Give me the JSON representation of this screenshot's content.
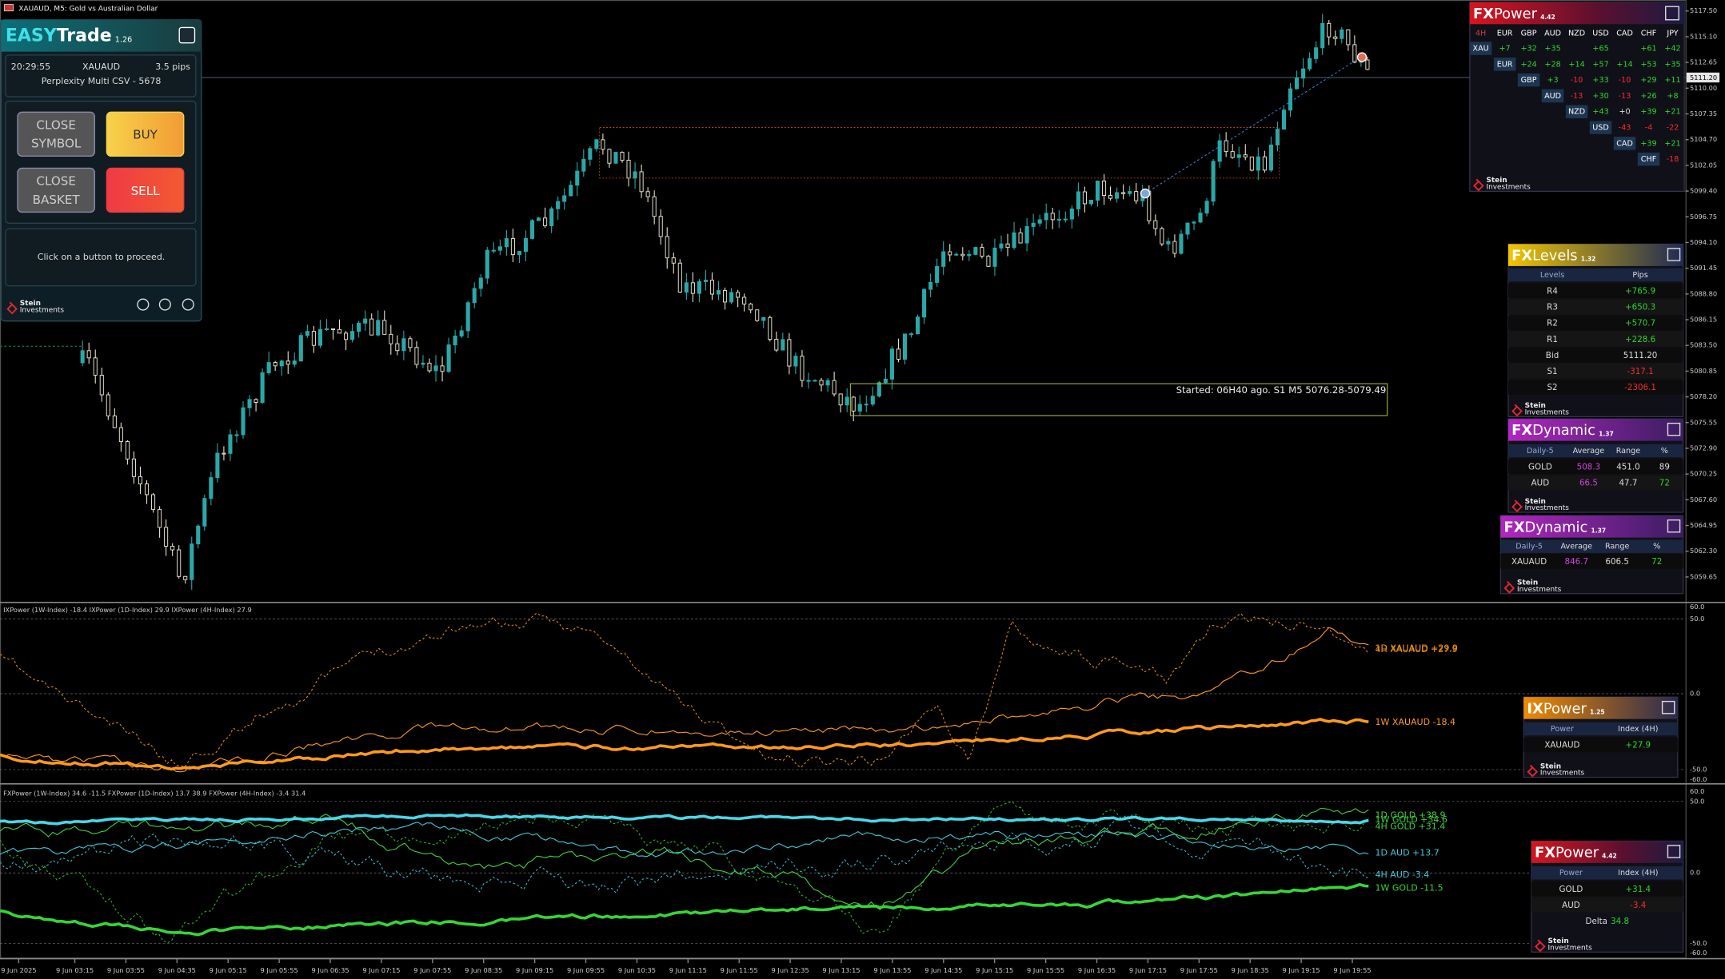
{
  "window_title": "XAUAUD, M5: Gold vs Australian Dollar",
  "price_axis": [
    "5117.50",
    "5115.10",
    "5112.65",
    "5110.00",
    "5107.35",
    "5104.70",
    "5102.05",
    "5099.40",
    "5096.75",
    "5094.10",
    "5091.45",
    "5088.80",
    "5086.15",
    "5083.50",
    "5080.85",
    "5078.20",
    "5075.55",
    "5072.90",
    "5070.25",
    "5067.60",
    "5064.95",
    "5062.30",
    "5059.65"
  ],
  "current_price": "5111.20",
  "time_axis": [
    "9 Jun 2025",
    "9 Jun 03:15",
    "9 Jun 03:55",
    "9 Jun 04:35",
    "9 Jun 05:15",
    "9 Jun 05:55",
    "9 Jun 06:35",
    "9 Jun 07:15",
    "9 Jun 07:55",
    "9 Jun 08:35",
    "9 Jun 09:15",
    "9 Jun 09:55",
    "9 Jun 10:35",
    "9 Jun 11:15",
    "9 Jun 11:55",
    "9 Jun 12:35",
    "9 Jun 13:15",
    "9 Jun 13:55",
    "9 Jun 14:35",
    "9 Jun 15:15",
    "9 Jun 15:55",
    "9 Jun 16:35",
    "9 Jun 17:15",
    "9 Jun 17:55",
    "9 Jun 18:35",
    "9 Jun 19:15",
    "9 Jun 19:55"
  ],
  "annotation": "Started: 06H40 ago. S1 M5 5076.28-5079.49",
  "logo": [
    "Stein",
    "Investments"
  ],
  "easytrade": {
    "brand": "EASY",
    "name": "Trade",
    "version": "1.26",
    "time": "20:29:55",
    "symbol": "XAUAUD",
    "spread": "3.5 pips",
    "profile": "Perplexity Multi CSV - 5678",
    "buttons": {
      "close_symbol": [
        "CLOSE",
        "SYMBOL"
      ],
      "buy": "BUY",
      "close_basket": [
        "CLOSE",
        "BASKET"
      ],
      "sell": "SELL"
    },
    "message": "Click on a button to proceed."
  },
  "fxpower_matrix": {
    "brand": "FX",
    "name": "Power",
    "version": "4.42",
    "columns": [
      "4H",
      "EUR",
      "GBP",
      "AUD",
      "NZD",
      "USD",
      "CAD",
      "CHF",
      "JPY"
    ],
    "rows": [
      {
        "label": "XAU",
        "cells": [
          "+7",
          "+32",
          "+35",
          null,
          "+65",
          null,
          "+61",
          "+42"
        ]
      },
      {
        "label": "EUR",
        "cells": [
          "+24",
          "+28",
          "+14",
          "+57",
          "+14",
          "+53",
          "+35"
        ]
      },
      {
        "label": "GBP",
        "cells": [
          "+3",
          "-10",
          "+33",
          "-10",
          "+29",
          "+11"
        ]
      },
      {
        "label": "AUD",
        "cells": [
          "-13",
          "+30",
          "-13",
          "+26",
          "+8"
        ]
      },
      {
        "label": "NZD",
        "cells": [
          "+43",
          "+0",
          "+39",
          "+21"
        ]
      },
      {
        "label": "USD",
        "cells": [
          "-43",
          "-4",
          "-22"
        ]
      },
      {
        "label": "CAD",
        "cells": [
          "+39",
          "+21"
        ]
      },
      {
        "label": "CHF",
        "cells": [
          "-18"
        ]
      }
    ]
  },
  "fxlevels": {
    "brand": "FX",
    "name": "Levels",
    "version": "1.32",
    "headers": [
      "Levels",
      "Pips"
    ],
    "rows": [
      [
        "R4",
        "+765.9"
      ],
      [
        "R3",
        "+650.3"
      ],
      [
        "R2",
        "+570.7"
      ],
      [
        "R1",
        "+228.6"
      ],
      [
        "Bid",
        "5111.20"
      ],
      [
        "S1",
        "-317.1"
      ],
      [
        "S2",
        "-2306.1"
      ]
    ]
  },
  "fxdynamic_pair": {
    "brand": "FX",
    "name": "Dynamic",
    "version": "1.37",
    "headers": [
      "Daily-5",
      "Average",
      "Range",
      "%"
    ],
    "rows": [
      [
        "GOLD",
        "508.3",
        "451.0",
        "89"
      ],
      [
        "AUD",
        "66.5",
        "47.7",
        "72"
      ]
    ]
  },
  "fxdynamic_symbol": {
    "brand": "FX",
    "name": "Dynamic",
    "version": "1.37",
    "headers": [
      "Daily-5",
      "Average",
      "Range",
      "%"
    ],
    "rows": [
      [
        "XAUAUD",
        "846.7",
        "606.5",
        "72"
      ]
    ]
  },
  "ixpower_window": {
    "header": "IXPower (1W-Index) -18.4 IXPower (1D-Index) 29.9 IXPower (4H-Index) 27.9",
    "axis": [
      "60.0",
      "50.0",
      "0.0",
      "-50.0",
      "-60.0"
    ],
    "line_labels": [
      "1D XAUAUD +29.9",
      "4H XAUAUD +27.9",
      "1W XAUAUD -18.4"
    ]
  },
  "ixpower_panel": {
    "brand": "IX",
    "name": "Power",
    "version": "1.25",
    "headers": [
      "Power",
      "Index (4H)"
    ],
    "rows": [
      [
        "XAUAUD",
        "+27.9"
      ]
    ]
  },
  "fxpower_window": {
    "header": "FXPower (1W-Index) 34.6 -11.5 FXPower (1D-Index) 13.7 38.9 FXPower (4H-Index) -3.4 31.4",
    "axis": [
      "60.0",
      "50.0",
      "0.0",
      "-50.0",
      "-60.0"
    ],
    "line_labels": [
      "1D GOLD +38.9",
      "1W GOLD +34.6",
      "4H GOLD +31.4",
      "1D AUD +13.7",
      "4H AUD -3.4",
      "1W GOLD -11.5"
    ]
  },
  "fxpower_panel": {
    "brand": "FX",
    "name": "Power",
    "version": "4.42",
    "headers": [
      "Power",
      "Index (4H)"
    ],
    "rows": [
      [
        "GOLD",
        "+31.4"
      ],
      [
        "AUD",
        "-3.4"
      ]
    ],
    "delta_label": "Delta",
    "delta": "34.8"
  }
}
